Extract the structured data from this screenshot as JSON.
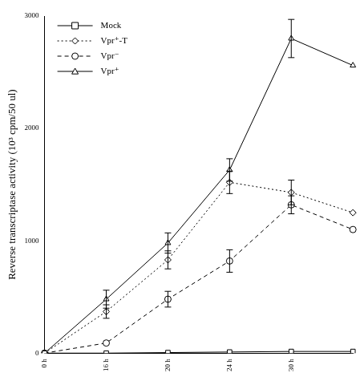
{
  "chart_data": {
    "type": "line",
    "y_label": "Reverse transcriptase activity (10³ cpm/50 ul)",
    "categories": [
      "0 h",
      "16 h",
      "20 h",
      "24 h",
      "30 h",
      null
    ],
    "series": [
      {
        "name": "Mock",
        "color": "#000000",
        "marker": "square",
        "line_style": "solid",
        "values": [
          0,
          0,
          5,
          10,
          15,
          15
        ],
        "errors": [
          null,
          null,
          null,
          null,
          null,
          null
        ]
      },
      {
        "name": "Vpr⁺-T",
        "color": "#000000",
        "marker": "diamond",
        "line_style": "dotted",
        "values": [
          0,
          370,
          830,
          1520,
          1430,
          1250
        ],
        "errors": [
          null,
          60,
          80,
          100,
          110,
          null
        ]
      },
      {
        "name": "Vpr⁻",
        "color": "#000000",
        "marker": "circle",
        "line_style": "dashed",
        "values": [
          0,
          90,
          480,
          820,
          1320,
          1100
        ],
        "errors": [
          null,
          null,
          70,
          100,
          80,
          null
        ]
      },
      {
        "name": "Vpr⁺",
        "color": "#000000",
        "marker": "triangle",
        "line_style": "solid",
        "values": [
          0,
          480,
          980,
          1630,
          2800,
          2560
        ],
        "errors": [
          null,
          80,
          90,
          100,
          170,
          null
        ]
      }
    ],
    "ylim": [
      0,
      3000
    ],
    "yticks": [
      0,
      1000,
      2000,
      3000
    ],
    "grid": false,
    "legend": "upper left"
  }
}
